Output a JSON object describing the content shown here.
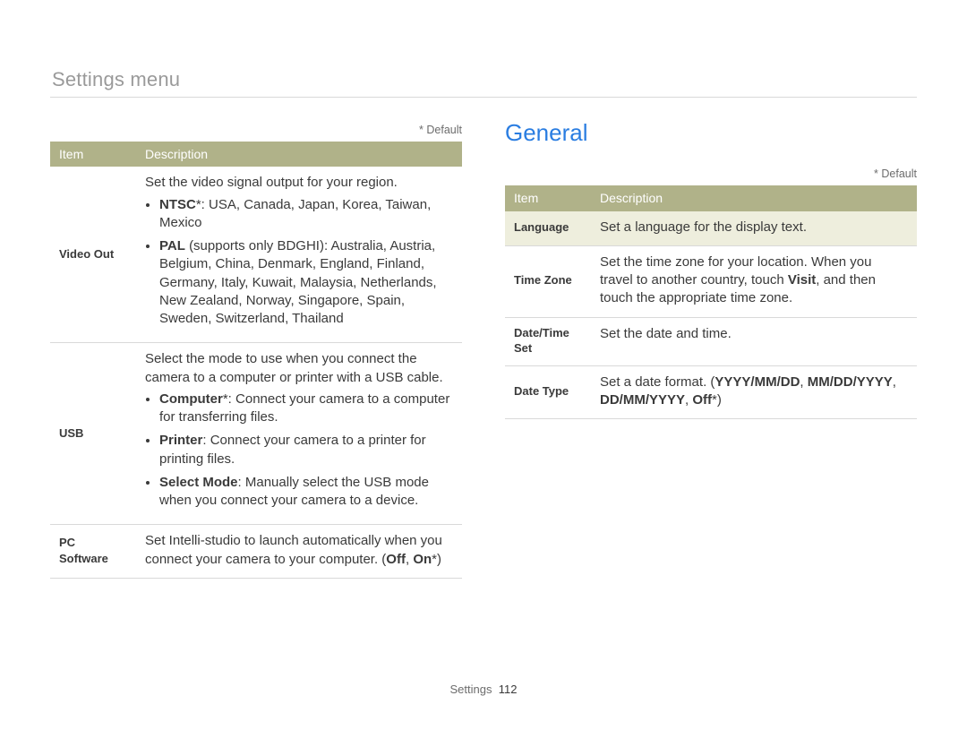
{
  "header": {
    "section": "Settings menu"
  },
  "general": {
    "title": "General"
  },
  "defaultNote": "* Default",
  "tableHeaders": {
    "item": "Item",
    "description": "Description"
  },
  "left": {
    "rows": [
      {
        "item": "Video Out",
        "intro": "Set the video signal output for your region.",
        "bullets": [
          {
            "label": "NTSC",
            "star": "*: ",
            "text": "USA, Canada, Japan, Korea, Taiwan, Mexico"
          },
          {
            "label": "PAL",
            "star": " ",
            "text": "(supports only BDGHI): Australia, Austria, Belgium, China, Denmark, England, Finland, Germany, Italy, Kuwait, Malaysia, Netherlands, New Zealand, Norway, Singapore, Spain, Sweden, Switzerland, Thailand"
          }
        ]
      },
      {
        "item": "USB",
        "intro": "Select the mode to use when you connect the camera to a computer or printer with a USB cable.",
        "bullets": [
          {
            "label": "Computer",
            "star": "*: ",
            "text": "Connect your camera to a computer for transferring files."
          },
          {
            "label": "Printer",
            "star": ": ",
            "text": "Connect your camera to a printer for printing files."
          },
          {
            "label": "Select Mode",
            "star": ": ",
            "text": "Manually select the USB mode when you connect your camera to a device."
          }
        ]
      },
      {
        "item": "PC Software",
        "desc_pre": "Set Intelli-studio to launch automatically when you connect your camera to your computer. (",
        "opt1": "Off",
        "sep": ", ",
        "opt2": "On",
        "opt2_star": "*",
        "desc_post": ")"
      }
    ]
  },
  "right": {
    "rows": [
      {
        "item": "Language",
        "desc": "Set a language for the display text."
      },
      {
        "item": "Time Zone",
        "desc_pre": "Set the time zone for your location. When you travel to another country, touch ",
        "bold": "Visit",
        "desc_post": ", and then touch the appropriate time zone."
      },
      {
        "item": "Date/Time Set",
        "desc": "Set the date and time."
      },
      {
        "item": "Date Type",
        "desc_pre": "Set a date format. (",
        "b1": "YYYY/MM/DD",
        "s1": ", ",
        "b2": "MM/DD/YYYY",
        "s2": ", ",
        "b3": "DD/MM/YYYY",
        "s3": ", ",
        "b4": "Off",
        "b4_star": "*",
        "desc_post": ")"
      }
    ]
  },
  "footer": {
    "label": "Settings",
    "page": "112"
  },
  "colors": {
    "header_bg": "#b0b289",
    "header_fg": "#ffffff",
    "shade_bg": "#eeeedd",
    "accent": "#2a7de1",
    "rule": "#d9d9d9",
    "body_text": "#3a3a3a",
    "muted_text": "#9a9a9a"
  }
}
